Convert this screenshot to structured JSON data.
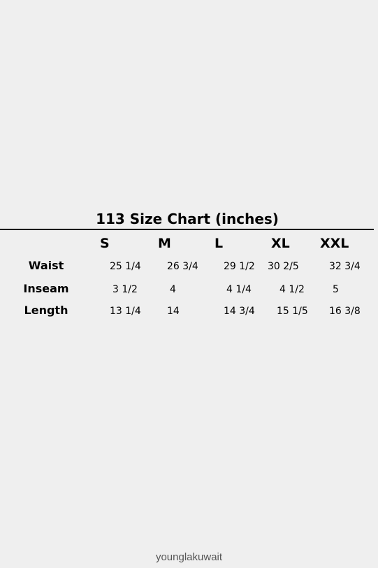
{
  "table": {
    "title": "113 Size Chart (inches)",
    "columns": [
      "S",
      "M",
      "L",
      "XL",
      "XXL"
    ],
    "rows": [
      [
        "Waist",
        "25 1/4",
        "26 3/4",
        "29 1/2",
        "30 2/5",
        "32 3/4"
      ],
      [
        "Inseam",
        "3 1/2",
        "4",
        "4 1/4",
        "4 1/2",
        "5"
      ],
      [
        "Length",
        "13 1/4",
        "14",
        "14 3/4",
        "15 1/5",
        "16 3/8"
      ]
    ]
  },
  "footer": "younglakuwait"
}
